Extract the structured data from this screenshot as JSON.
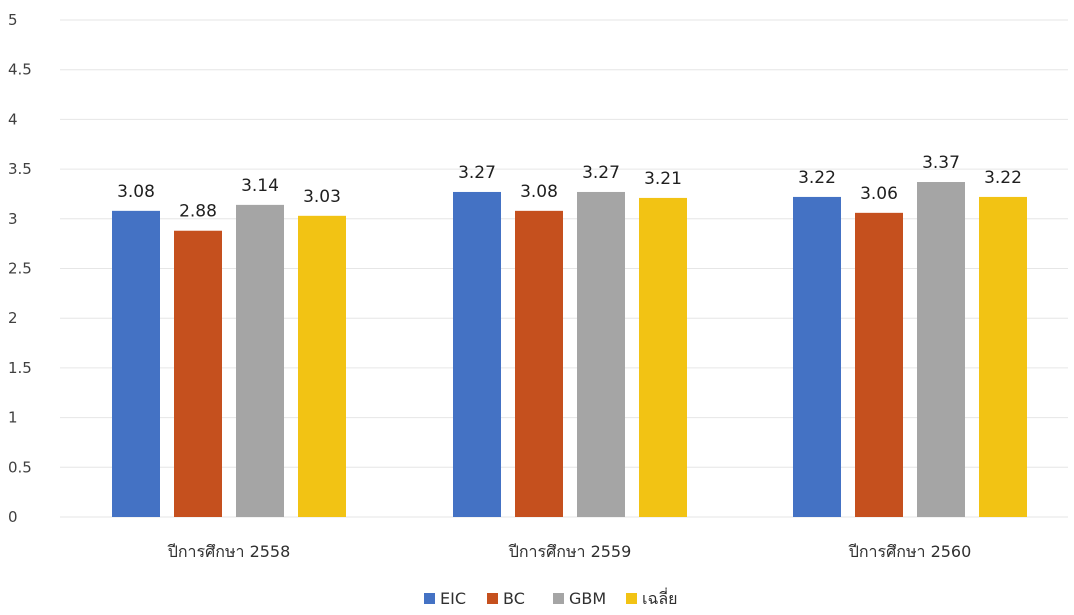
{
  "chart_data": {
    "type": "bar",
    "title": "",
    "xlabel": "",
    "ylabel": "",
    "categories": [
      "ปีการศึกษา 2558",
      "ปีการศึกษา 2559",
      "ปีการศึกษา 2560"
    ],
    "series": [
      {
        "name": "EIC",
        "color": "#4472C4",
        "values": [
          3.08,
          3.27,
          3.22
        ]
      },
      {
        "name": "BC",
        "color": "#C5501E",
        "values": [
          2.88,
          3.08,
          3.06
        ]
      },
      {
        "name": "GBM",
        "color": "#A5A5A5",
        "values": [
          3.14,
          3.27,
          3.37
        ]
      },
      {
        "name": "เฉลี่ย",
        "color": "#F2C314",
        "values": [
          3.03,
          3.21,
          3.22
        ]
      }
    ],
    "y_ticks": [
      "0",
      "0.5",
      "1",
      "1.5",
      "2",
      "2.5",
      "3",
      "3.5",
      "4",
      "4.5",
      "5"
    ],
    "ylim": [
      0,
      5
    ],
    "grid": true,
    "legend_position": "bottom"
  }
}
